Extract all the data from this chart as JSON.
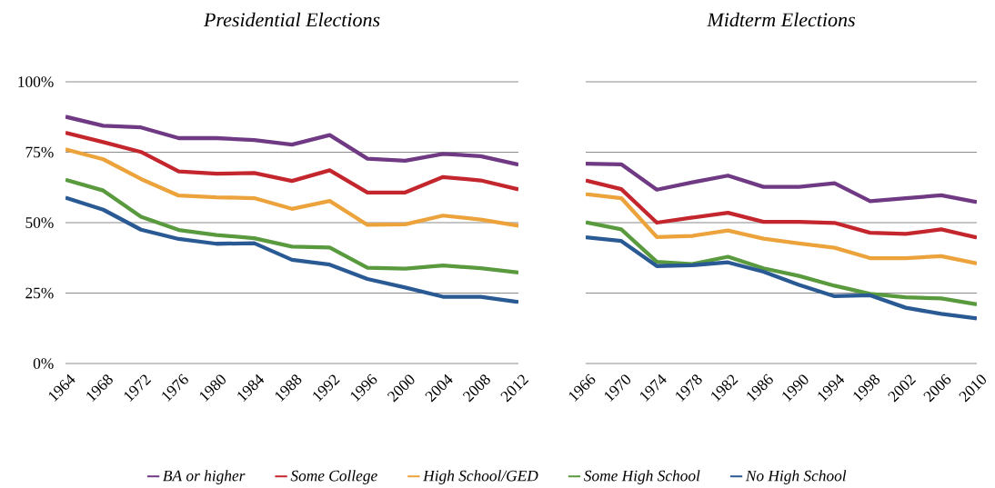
{
  "chart_data": [
    {
      "type": "line",
      "title": "Presidential Elections",
      "categories": [
        "1964",
        "1968",
        "1972",
        "1976",
        "1980",
        "1984",
        "1988",
        "1992",
        "1996",
        "2000",
        "2004",
        "2008",
        "2012"
      ],
      "ylim": [
        0,
        100
      ],
      "yticks": [
        {
          "value": 0,
          "label": "0%"
        },
        {
          "value": 25,
          "label": "25%"
        },
        {
          "value": 50,
          "label": "50%"
        },
        {
          "value": 75,
          "label": "75%"
        },
        {
          "value": 100,
          "label": "100%"
        }
      ],
      "grid": "y",
      "legend": "bottom",
      "series": [
        {
          "name": "BA or higher",
          "color": "#6f3a83",
          "values": [
            87.6,
            84.4,
            83.8,
            80,
            80,
            79.3,
            77.7,
            81.1,
            72.7,
            72,
            74.4,
            73.6,
            70.6
          ]
        },
        {
          "name": "Some College",
          "color": "#c4262e",
          "values": [
            81.9,
            78.6,
            75.1,
            68.2,
            67.4,
            67.6,
            64.8,
            68.6,
            60.7,
            60.7,
            66.2,
            65,
            61.8
          ]
        },
        {
          "name": "High School/GED",
          "color": "#eda33b",
          "values": [
            76,
            72.5,
            65.5,
            59.6,
            59,
            58.7,
            54.9,
            57.7,
            49.2,
            49.4,
            52.5,
            51.1,
            48.9
          ]
        },
        {
          "name": "Some High School",
          "color": "#5a9a3e",
          "values": [
            65.2,
            61.4,
            52.1,
            47.4,
            45.6,
            44.5,
            41.5,
            41.2,
            34,
            33.7,
            34.8,
            33.8,
            32.3
          ]
        },
        {
          "name": "No High School",
          "color": "#2a5a93",
          "values": [
            58.9,
            54.6,
            47.5,
            44.2,
            42.5,
            42.7,
            36.8,
            35.1,
            30,
            27,
            23.7,
            23.7,
            21.8
          ]
        }
      ]
    },
    {
      "type": "line",
      "title": "Midterm Elections",
      "categories": [
        "1966",
        "1970",
        "1974",
        "1978",
        "1982",
        "1986",
        "1990",
        "1994",
        "1998",
        "2002",
        "2006",
        "2010"
      ],
      "ylim": [
        0,
        100
      ],
      "yticks": [
        {
          "value": 0,
          "label": null
        },
        {
          "value": 25,
          "label": null
        },
        {
          "value": 50,
          "label": null
        },
        {
          "value": 75,
          "label": null
        },
        {
          "value": 100,
          "label": null
        }
      ],
      "grid": "y",
      "tick_labels": "x",
      "series": [
        {
          "color": "#6f3a83",
          "values": [
            70.9,
            70.7,
            61.7,
            64.3,
            66.7,
            62.7,
            62.7,
            64,
            57.6,
            58.7,
            59.7,
            57.3
          ]
        },
        {
          "color": "#c4262e",
          "values": [
            65,
            61.9,
            50,
            51.8,
            53.5,
            50.3,
            50.3,
            49.9,
            46.4,
            46,
            47.6,
            44.7
          ]
        },
        {
          "color": "#eda33b",
          "values": [
            60.1,
            58.7,
            44.9,
            45.3,
            47.2,
            44.3,
            42.6,
            41.1,
            37.4,
            37.4,
            38.1,
            35.5
          ]
        },
        {
          "color": "#5a9a3e",
          "values": [
            50.1,
            47.6,
            36.1,
            35.3,
            37.9,
            33.8,
            31.1,
            27.6,
            24.7,
            23.5,
            23.1,
            21
          ]
        },
        {
          "color": "#2a5a93",
          "values": [
            44.8,
            43.5,
            34.6,
            34.9,
            35.9,
            32.6,
            27.9,
            23.9,
            24.2,
            19.8,
            17.6,
            16
          ]
        }
      ]
    }
  ]
}
